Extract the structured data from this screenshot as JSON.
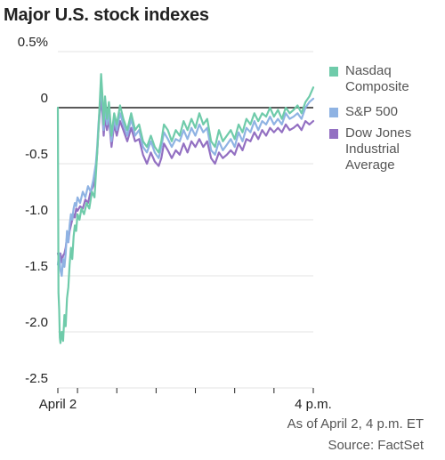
{
  "title": "Major U.S. stock indexes",
  "footer": {
    "asof": "As of April 2, 4 p.m. ET",
    "source": "Source: FactSet"
  },
  "chart_data": {
    "type": "line",
    "title": "Major U.S. stock indexes",
    "ylabel": "",
    "xlabel": "",
    "ylim": [
      -2.5,
      0.5
    ],
    "yticks": [
      0.5,
      0,
      -0.5,
      -1.0,
      -1.5,
      -2.0,
      -2.5
    ],
    "ytick_labels": [
      "0.5%",
      "0",
      "-0.5",
      "-1.0",
      "-1.5",
      "-2.0",
      "-2.5"
    ],
    "x_range": [
      "9:30 a.m.",
      "4 p.m."
    ],
    "x_tick_labels": [
      {
        "t": 0,
        "label": "April 2"
      },
      {
        "t": 390,
        "label": "4 p.m."
      }
    ],
    "x_minor_ticks": [
      0,
      30,
      90,
      150,
      210,
      270,
      330,
      390
    ],
    "grid": true,
    "legend_position": "right",
    "series": [
      {
        "name": "Nasdaq Composite",
        "color": "#6fcbaa",
        "points": [
          [
            0,
            0
          ],
          [
            1,
            -1.65
          ],
          [
            2,
            -1.8
          ],
          [
            3,
            -2.05
          ],
          [
            4,
            -2.1
          ],
          [
            6,
            -2.0
          ],
          [
            8,
            -2.08
          ],
          [
            10,
            -1.85
          ],
          [
            12,
            -1.95
          ],
          [
            14,
            -1.7
          ],
          [
            16,
            -1.6
          ],
          [
            18,
            -1.4
          ],
          [
            20,
            -1.25
          ],
          [
            22,
            -1.35
          ],
          [
            24,
            -1.15
          ],
          [
            26,
            -1.05
          ],
          [
            28,
            -1.1
          ],
          [
            30,
            -0.95
          ],
          [
            33,
            -1.0
          ],
          [
            36,
            -0.9
          ],
          [
            40,
            -0.95
          ],
          [
            44,
            -0.85
          ],
          [
            48,
            -0.9
          ],
          [
            52,
            -0.75
          ],
          [
            56,
            -0.8
          ],
          [
            58,
            -0.6
          ],
          [
            60,
            -0.4
          ],
          [
            62,
            -0.2
          ],
          [
            64,
            0.05
          ],
          [
            66,
            0.3
          ],
          [
            68,
            0.12
          ],
          [
            70,
            -0.15
          ],
          [
            72,
            0.1
          ],
          [
            75,
            -0.1
          ],
          [
            78,
            0.05
          ],
          [
            82,
            -0.25
          ],
          [
            86,
            -0.05
          ],
          [
            90,
            -0.15
          ],
          [
            95,
            0.02
          ],
          [
            100,
            -0.1
          ],
          [
            106,
            -0.2
          ],
          [
            112,
            -0.05
          ],
          [
            118,
            -0.2
          ],
          [
            124,
            -0.15
          ],
          [
            130,
            -0.3
          ],
          [
            136,
            -0.35
          ],
          [
            142,
            -0.25
          ],
          [
            148,
            -0.35
          ],
          [
            154,
            -0.4
          ],
          [
            158,
            -0.3
          ],
          [
            162,
            -0.15
          ],
          [
            168,
            -0.2
          ],
          [
            174,
            -0.3
          ],
          [
            180,
            -0.2
          ],
          [
            186,
            -0.25
          ],
          [
            192,
            -0.12
          ],
          [
            198,
            -0.2
          ],
          [
            204,
            -0.1
          ],
          [
            210,
            -0.18
          ],
          [
            216,
            -0.05
          ],
          [
            222,
            -0.15
          ],
          [
            228,
            -0.1
          ],
          [
            234,
            -0.3
          ],
          [
            240,
            -0.35
          ],
          [
            246,
            -0.2
          ],
          [
            252,
            -0.3
          ],
          [
            258,
            -0.25
          ],
          [
            264,
            -0.2
          ],
          [
            270,
            -0.28
          ],
          [
            276,
            -0.15
          ],
          [
            282,
            -0.22
          ],
          [
            288,
            -0.1
          ],
          [
            294,
            -0.15
          ],
          [
            300,
            -0.05
          ],
          [
            306,
            -0.12
          ],
          [
            312,
            -0.05
          ],
          [
            318,
            -0.08
          ],
          [
            324,
            0.0
          ],
          [
            330,
            -0.08
          ],
          [
            336,
            -0.02
          ],
          [
            342,
            -0.1
          ],
          [
            348,
            0.0
          ],
          [
            354,
            -0.05
          ],
          [
            360,
            -0.02
          ],
          [
            366,
            0.02
          ],
          [
            372,
            -0.05
          ],
          [
            378,
            0.05
          ],
          [
            384,
            0.1
          ],
          [
            390,
            0.18
          ]
        ]
      },
      {
        "name": "S&P 500",
        "color": "#8fb3e3",
        "points": [
          [
            0,
            -1.4
          ],
          [
            2,
            -1.3
          ],
          [
            4,
            -1.45
          ],
          [
            6,
            -1.5
          ],
          [
            8,
            -1.35
          ],
          [
            10,
            -1.42
          ],
          [
            12,
            -1.3
          ],
          [
            14,
            -1.1
          ],
          [
            16,
            -1.2
          ],
          [
            18,
            -1.05
          ],
          [
            20,
            -0.95
          ],
          [
            22,
            -1.0
          ],
          [
            24,
            -0.9
          ],
          [
            26,
            -0.85
          ],
          [
            28,
            -0.88
          ],
          [
            30,
            -0.8
          ],
          [
            34,
            -0.85
          ],
          [
            38,
            -0.75
          ],
          [
            42,
            -0.8
          ],
          [
            46,
            -0.7
          ],
          [
            50,
            -0.75
          ],
          [
            54,
            -0.65
          ],
          [
            58,
            -0.5
          ],
          [
            60,
            -0.35
          ],
          [
            62,
            -0.15
          ],
          [
            64,
            0.0
          ],
          [
            66,
            0.2
          ],
          [
            68,
            0.05
          ],
          [
            70,
            -0.2
          ],
          [
            72,
            0.02
          ],
          [
            75,
            -0.15
          ],
          [
            78,
            -0.05
          ],
          [
            82,
            -0.3
          ],
          [
            86,
            -0.1
          ],
          [
            90,
            -0.2
          ],
          [
            95,
            -0.05
          ],
          [
            100,
            -0.15
          ],
          [
            106,
            -0.25
          ],
          [
            112,
            -0.1
          ],
          [
            118,
            -0.25
          ],
          [
            124,
            -0.2
          ],
          [
            130,
            -0.35
          ],
          [
            136,
            -0.4
          ],
          [
            142,
            -0.3
          ],
          [
            148,
            -0.4
          ],
          [
            154,
            -0.45
          ],
          [
            158,
            -0.35
          ],
          [
            162,
            -0.22
          ],
          [
            168,
            -0.28
          ],
          [
            174,
            -0.35
          ],
          [
            180,
            -0.28
          ],
          [
            186,
            -0.3
          ],
          [
            192,
            -0.2
          ],
          [
            198,
            -0.28
          ],
          [
            204,
            -0.18
          ],
          [
            210,
            -0.25
          ],
          [
            216,
            -0.15
          ],
          [
            222,
            -0.22
          ],
          [
            228,
            -0.18
          ],
          [
            234,
            -0.38
          ],
          [
            240,
            -0.42
          ],
          [
            246,
            -0.3
          ],
          [
            252,
            -0.38
          ],
          [
            258,
            -0.33
          ],
          [
            264,
            -0.28
          ],
          [
            270,
            -0.35
          ],
          [
            276,
            -0.22
          ],
          [
            282,
            -0.3
          ],
          [
            288,
            -0.18
          ],
          [
            294,
            -0.22
          ],
          [
            300,
            -0.12
          ],
          [
            306,
            -0.2
          ],
          [
            312,
            -0.12
          ],
          [
            318,
            -0.15
          ],
          [
            324,
            -0.08
          ],
          [
            330,
            -0.15
          ],
          [
            336,
            -0.1
          ],
          [
            342,
            -0.15
          ],
          [
            348,
            -0.05
          ],
          [
            354,
            -0.1
          ],
          [
            360,
            -0.08
          ],
          [
            366,
            -0.05
          ],
          [
            372,
            -0.1
          ],
          [
            378,
            0.0
          ],
          [
            384,
            0.05
          ],
          [
            390,
            0.08
          ]
        ]
      },
      {
        "name": "Dow Jones Industrial Average",
        "color": "#9370c2",
        "points": [
          [
            0,
            -1.3
          ],
          [
            2,
            -1.35
          ],
          [
            4,
            -1.3
          ],
          [
            6,
            -1.38
          ],
          [
            8,
            -1.32
          ],
          [
            10,
            -1.3
          ],
          [
            12,
            -1.25
          ],
          [
            14,
            -1.15
          ],
          [
            16,
            -1.2
          ],
          [
            18,
            -1.1
          ],
          [
            20,
            -1.05
          ],
          [
            22,
            -1.0
          ],
          [
            24,
            -0.95
          ],
          [
            26,
            -0.98
          ],
          [
            28,
            -0.9
          ],
          [
            30,
            -0.92
          ],
          [
            34,
            -0.88
          ],
          [
            38,
            -0.9
          ],
          [
            42,
            -0.82
          ],
          [
            46,
            -0.85
          ],
          [
            50,
            -0.75
          ],
          [
            54,
            -0.7
          ],
          [
            58,
            -0.55
          ],
          [
            60,
            -0.4
          ],
          [
            62,
            -0.2
          ],
          [
            64,
            -0.05
          ],
          [
            66,
            0.1
          ],
          [
            68,
            -0.05
          ],
          [
            70,
            -0.25
          ],
          [
            72,
            -0.08
          ],
          [
            75,
            -0.2
          ],
          [
            78,
            -0.1
          ],
          [
            82,
            -0.35
          ],
          [
            86,
            -0.15
          ],
          [
            90,
            -0.25
          ],
          [
            95,
            -0.12
          ],
          [
            100,
            -0.2
          ],
          [
            106,
            -0.3
          ],
          [
            112,
            -0.18
          ],
          [
            118,
            -0.3
          ],
          [
            124,
            -0.28
          ],
          [
            130,
            -0.42
          ],
          [
            136,
            -0.5
          ],
          [
            142,
            -0.4
          ],
          [
            148,
            -0.48
          ],
          [
            154,
            -0.52
          ],
          [
            158,
            -0.45
          ],
          [
            162,
            -0.32
          ],
          [
            168,
            -0.38
          ],
          [
            174,
            -0.45
          ],
          [
            180,
            -0.38
          ],
          [
            186,
            -0.42
          ],
          [
            192,
            -0.32
          ],
          [
            198,
            -0.4
          ],
          [
            204,
            -0.3
          ],
          [
            210,
            -0.35
          ],
          [
            216,
            -0.28
          ],
          [
            222,
            -0.35
          ],
          [
            228,
            -0.3
          ],
          [
            234,
            -0.45
          ],
          [
            240,
            -0.5
          ],
          [
            246,
            -0.4
          ],
          [
            252,
            -0.45
          ],
          [
            258,
            -0.42
          ],
          [
            264,
            -0.38
          ],
          [
            270,
            -0.42
          ],
          [
            276,
            -0.32
          ],
          [
            282,
            -0.38
          ],
          [
            288,
            -0.28
          ],
          [
            294,
            -0.3
          ],
          [
            300,
            -0.22
          ],
          [
            306,
            -0.28
          ],
          [
            312,
            -0.2
          ],
          [
            318,
            -0.25
          ],
          [
            324,
            -0.18
          ],
          [
            330,
            -0.22
          ],
          [
            336,
            -0.18
          ],
          [
            342,
            -0.22
          ],
          [
            348,
            -0.15
          ],
          [
            354,
            -0.2
          ],
          [
            360,
            -0.18
          ],
          [
            366,
            -0.15
          ],
          [
            372,
            -0.2
          ],
          [
            378,
            -0.12
          ],
          [
            384,
            -0.15
          ],
          [
            390,
            -0.12
          ]
        ]
      }
    ]
  }
}
